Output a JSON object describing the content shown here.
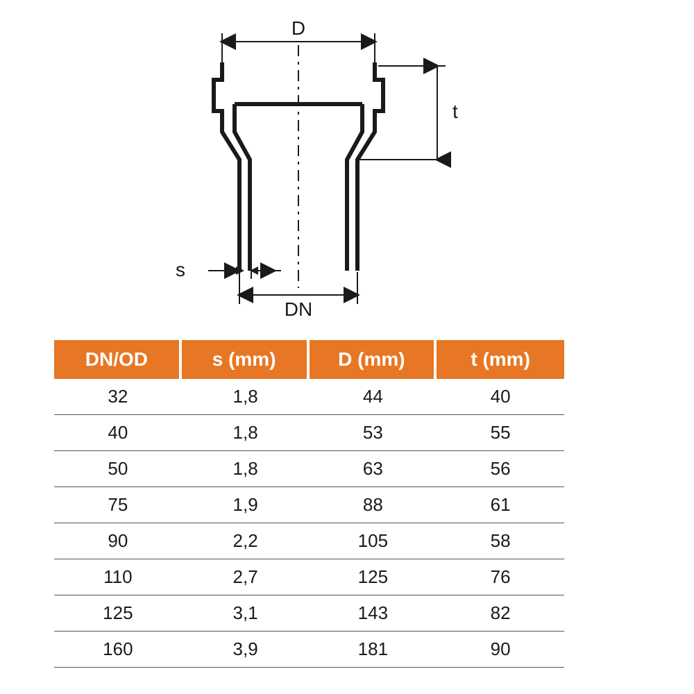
{
  "diagram": {
    "labels": {
      "D": "D",
      "t": "t",
      "s": "s",
      "DN": "DN"
    },
    "stroke_color": "#1a1a1a",
    "stroke_width_heavy": 6,
    "stroke_width_light": 2,
    "centerline_dash": "16 8 4 8",
    "arrow_size": 12,
    "label_fontsize": 28,
    "label_color": "#1a1a1a"
  },
  "table": {
    "header_bg": "#e77724",
    "header_fg": "#ffffff",
    "cell_fg": "#1a1a1a",
    "row_border": "#555555",
    "header_fontsize": 28,
    "cell_fontsize": 26,
    "columns": [
      "DN/OD",
      "s (mm)",
      "D (mm)",
      "t (mm)"
    ],
    "rows": [
      [
        "32",
        "1,8",
        "44",
        "40"
      ],
      [
        "40",
        "1,8",
        "53",
        "55"
      ],
      [
        "50",
        "1,8",
        "63",
        "56"
      ],
      [
        "75",
        "1,9",
        "88",
        "61"
      ],
      [
        "90",
        "2,2",
        "105",
        "58"
      ],
      [
        "110",
        "2,7",
        "125",
        "76"
      ],
      [
        "125",
        "3,1",
        "143",
        "82"
      ],
      [
        "160",
        "3,9",
        "181",
        "90"
      ]
    ]
  }
}
